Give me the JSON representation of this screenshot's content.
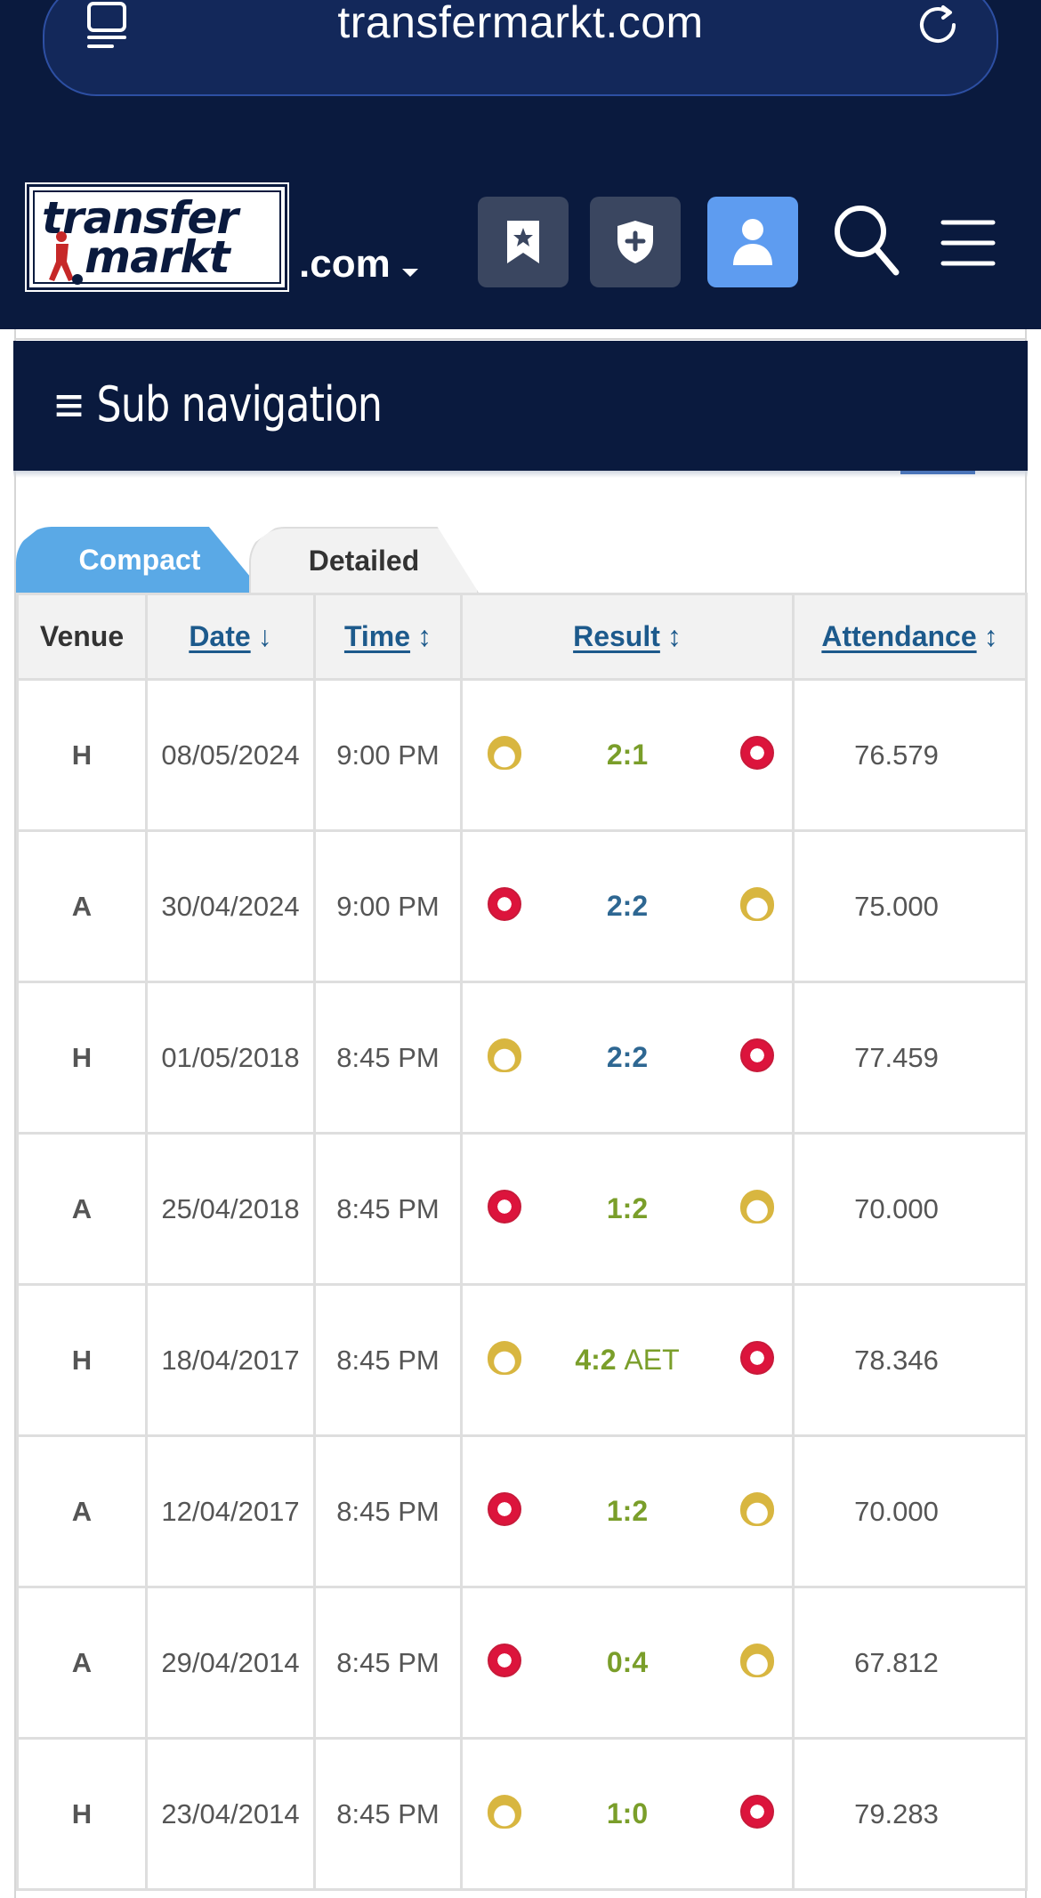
{
  "browser": {
    "url": "transfermarkt.com"
  },
  "header": {
    "logo_word1": "transfer",
    "logo_word2": "markt",
    "logo_tld": ".com",
    "icons": [
      "bookmark-star-icon",
      "shield-plus-icon",
      "user-icon",
      "search-icon",
      "hamburger-menu-icon"
    ]
  },
  "subnav": {
    "label": "≡ Sub navigation"
  },
  "tabs": {
    "compact": "Compact",
    "detailed": "Detailed"
  },
  "table": {
    "headers": {
      "venue": "Venue",
      "date": "Date",
      "time": "Time",
      "result": "Result",
      "attendance": "Attendance"
    },
    "rows": [
      {
        "venue": "H",
        "date": "08/05/2024",
        "time": "9:00 PM",
        "score": "2:1",
        "extra": "",
        "home": "real-madrid",
        "away": "bayern",
        "outcome": "win",
        "attendance": "76.579"
      },
      {
        "venue": "A",
        "date": "30/04/2024",
        "time": "9:00 PM",
        "score": "2:2",
        "extra": "",
        "home": "bayern",
        "away": "real-madrid",
        "outcome": "draw",
        "attendance": "75.000"
      },
      {
        "venue": "H",
        "date": "01/05/2018",
        "time": "8:45 PM",
        "score": "2:2",
        "extra": "",
        "home": "real-madrid",
        "away": "bayern",
        "outcome": "draw",
        "attendance": "77.459"
      },
      {
        "venue": "A",
        "date": "25/04/2018",
        "time": "8:45 PM",
        "score": "1:2",
        "extra": "",
        "home": "bayern",
        "away": "real-madrid",
        "outcome": "win",
        "attendance": "70.000"
      },
      {
        "venue": "H",
        "date": "18/04/2017",
        "time": "8:45 PM",
        "score": "4:2",
        "extra": "AET",
        "home": "real-madrid",
        "away": "bayern",
        "outcome": "win",
        "attendance": "78.346"
      },
      {
        "venue": "A",
        "date": "12/04/2017",
        "time": "8:45 PM",
        "score": "1:2",
        "extra": "",
        "home": "bayern",
        "away": "real-madrid",
        "outcome": "win",
        "attendance": "70.000"
      },
      {
        "venue": "A",
        "date": "29/04/2014",
        "time": "8:45 PM",
        "score": "0:4",
        "extra": "",
        "home": "bayern",
        "away": "real-madrid",
        "outcome": "win",
        "attendance": "67.812"
      },
      {
        "venue": "H",
        "date": "23/04/2014",
        "time": "8:45 PM",
        "score": "1:0",
        "extra": "",
        "home": "real-madrid",
        "away": "bayern",
        "outcome": "win",
        "attendance": "79.283"
      }
    ]
  },
  "colors": {
    "header_bg": "#0a1a3e",
    "tab_active": "#5aa9e6",
    "win": "#7a9e2a",
    "draw": "#2e6792",
    "link": "#1d5a8c"
  }
}
